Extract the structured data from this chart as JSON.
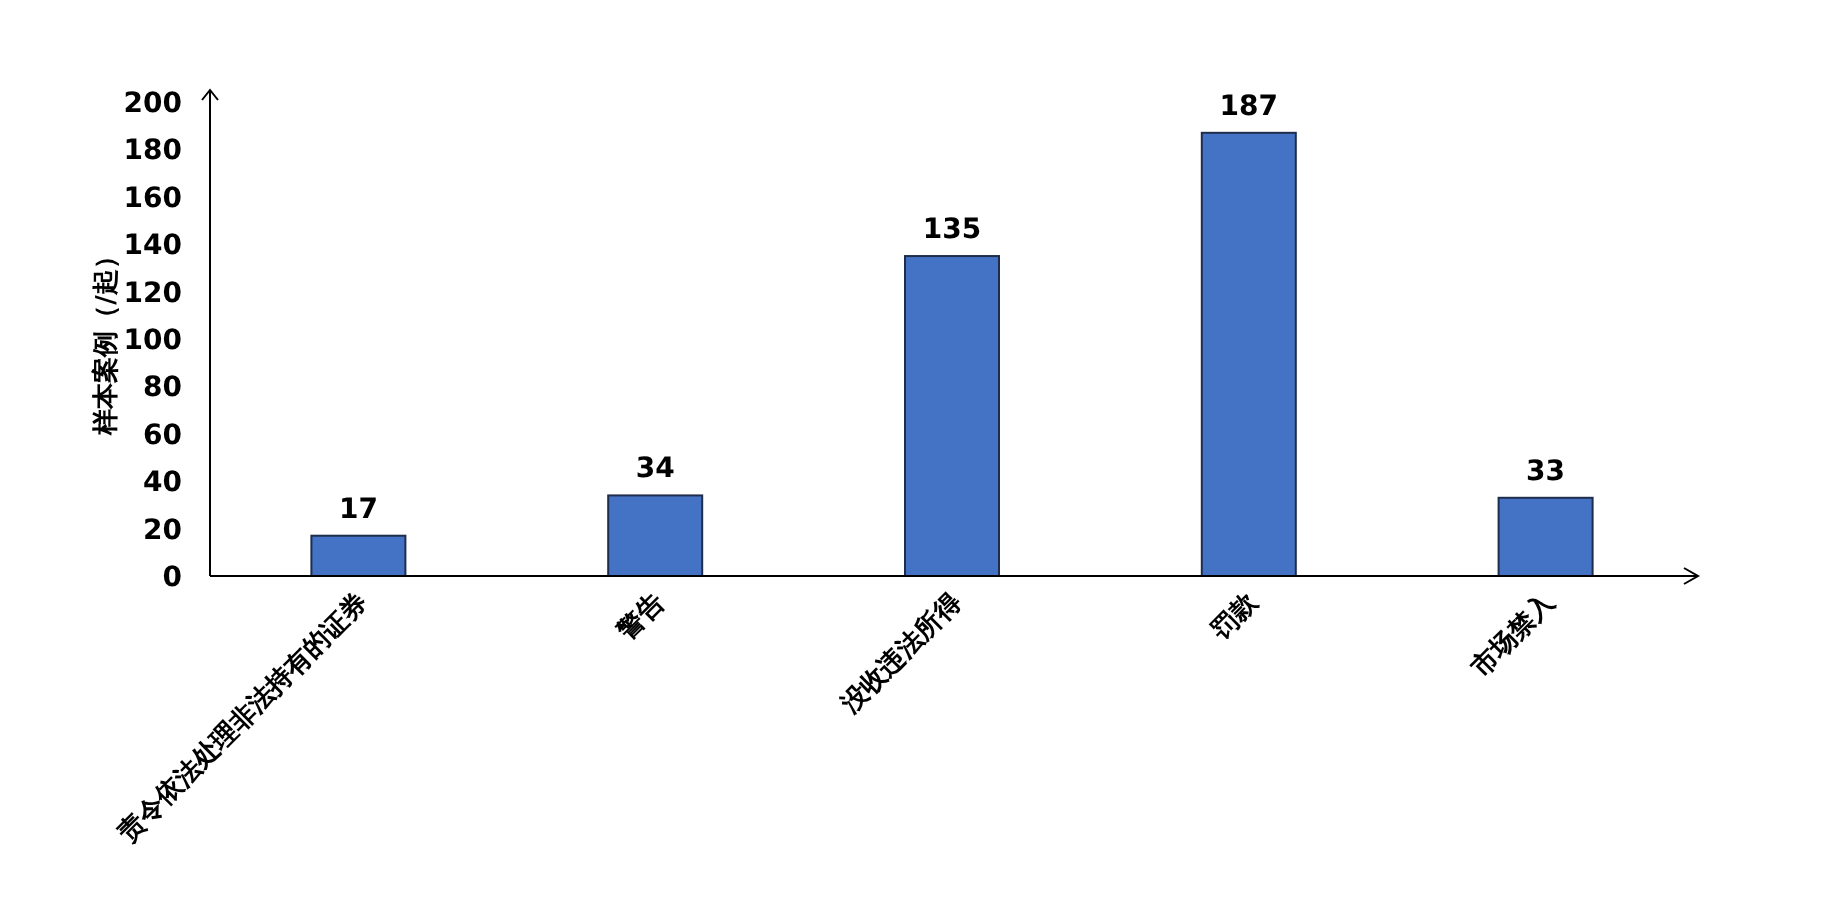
{
  "chart_data": {
    "type": "bar",
    "ylabel": "样本案例（/起）",
    "categories": [
      "责令依法处理非法持有的证券",
      "警告",
      "没收违法所得",
      "罚款",
      "市场禁入"
    ],
    "values": [
      17,
      34,
      135,
      187,
      33
    ],
    "color": "#4472c4",
    "ylim": [
      0,
      200
    ],
    "yticks": [
      0,
      20,
      40,
      60,
      80,
      100,
      120,
      140,
      160,
      180,
      200
    ],
    "data_labels": true
  }
}
